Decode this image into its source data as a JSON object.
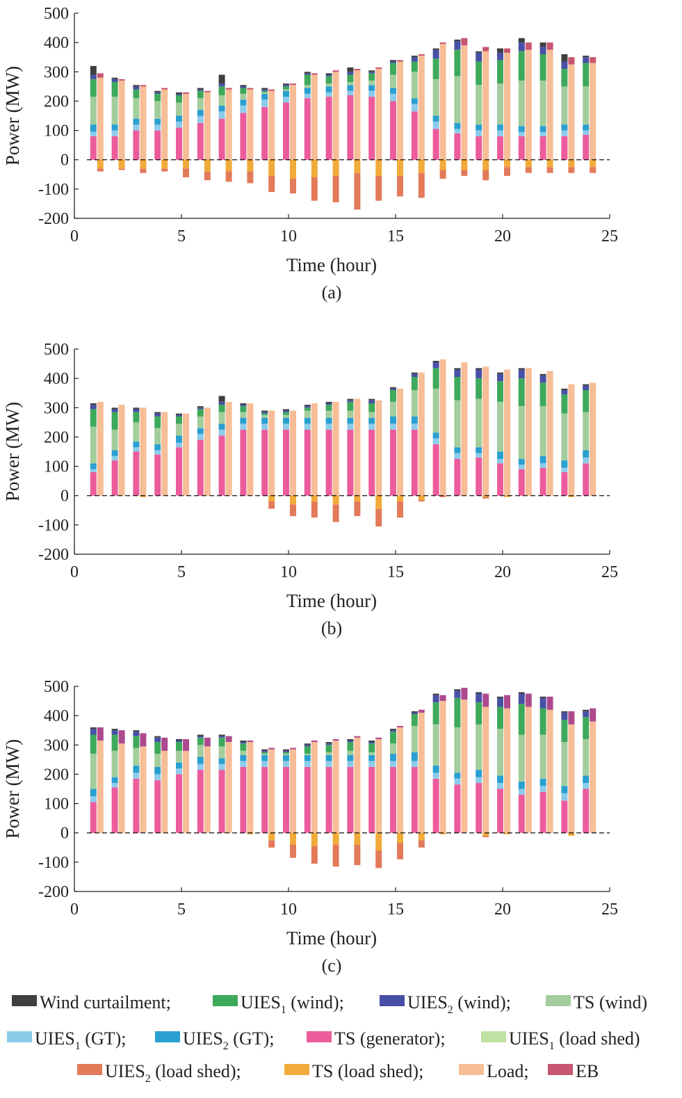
{
  "colors": {
    "wind_curt": "#3f3f3f",
    "u1_wind": "#3ea95a",
    "u2_wind": "#4850a6",
    "ts_wind": "#a3cd9c",
    "u1_gt": "#8ccbe9",
    "u2_gt": "#2a9fd0",
    "ts_gen": "#ec5c9c",
    "u1_shed": "#bfe1a2",
    "u2_shed": "#e37a5a",
    "ts_shed": "#f1ab3a",
    "load": "#f6bd96",
    "eb": "#c75670",
    "eb_c": "#ad4a8e"
  },
  "legend": [
    [
      {
        "key": "wind_curt",
        "label": "Wind curtailment;"
      },
      {
        "key": "u1_wind",
        "label": "UIES",
        "sub": "1",
        "after": " (wind);"
      },
      {
        "key": "u2_wind",
        "label": "UIES",
        "sub": "2",
        "after": " (wind);"
      },
      {
        "key": "ts_wind",
        "label": "TS (wind)"
      }
    ],
    [
      {
        "key": "u1_gt",
        "label": "UIES",
        "sub": "1",
        "after": " (GT);"
      },
      {
        "key": "u2_gt",
        "label": "UIES",
        "sub": "2",
        "after": " (GT);"
      },
      {
        "key": "ts_gen",
        "label": "TS (generator);"
      },
      {
        "key": "u1_shed",
        "label": "UIES",
        "sub": "1",
        "after": " (load shed)"
      }
    ],
    [
      {
        "key": "u2_shed",
        "label": "UIES",
        "sub": "2",
        "after": " (load shed);"
      },
      {
        "key": "ts_shed",
        "label": "TS (load shed);"
      },
      {
        "key": "load",
        "label": "Load;"
      },
      {
        "key": "eb",
        "label": "EB"
      }
    ]
  ],
  "chart_data": [
    {
      "type": "bar",
      "panel": "(a)",
      "xlabel": "Time (hour)",
      "ylabel": "Power (MW)",
      "xlim": [
        0,
        25
      ],
      "ylim": [
        -200,
        500
      ],
      "xticks": [
        0,
        5,
        10,
        15,
        20,
        25
      ],
      "yticks": [
        -200,
        -100,
        0,
        100,
        200,
        300,
        400,
        500
      ],
      "x": [
        1,
        2,
        3,
        4,
        5,
        6,
        7,
        8,
        9,
        10,
        11,
        12,
        13,
        14,
        15,
        16,
        17,
        18,
        19,
        20,
        21,
        22,
        23,
        24
      ],
      "series": [
        {
          "key": "ts_gen",
          "group": "supply",
          "values": [
            80,
            80,
            100,
            100,
            110,
            125,
            140,
            160,
            180,
            195,
            210,
            215,
            220,
            215,
            200,
            165,
            105,
            90,
            80,
            80,
            80,
            80,
            80,
            85
          ]
        },
        {
          "key": "u1_gt",
          "group": "supply",
          "values": [
            15,
            20,
            20,
            20,
            20,
            25,
            25,
            25,
            25,
            20,
            15,
            15,
            15,
            20,
            25,
            25,
            25,
            15,
            20,
            20,
            15,
            15,
            20,
            15
          ]
        },
        {
          "key": "u2_gt",
          "group": "supply",
          "values": [
            25,
            20,
            20,
            20,
            20,
            20,
            20,
            20,
            20,
            20,
            20,
            20,
            20,
            20,
            20,
            20,
            20,
            20,
            20,
            20,
            20,
            20,
            20,
            20
          ]
        },
        {
          "key": "ts_wind",
          "group": "supply",
          "values": [
            95,
            95,
            70,
            60,
            45,
            40,
            35,
            20,
            5,
            5,
            10,
            10,
            10,
            15,
            45,
            90,
            125,
            160,
            135,
            140,
            155,
            155,
            130,
            130
          ]
        },
        {
          "key": "u1_wind",
          "group": "supply",
          "values": [
            60,
            50,
            30,
            25,
            25,
            25,
            30,
            20,
            5,
            10,
            35,
            25,
            25,
            25,
            40,
            35,
            70,
            90,
            80,
            80,
            100,
            90,
            60,
            80
          ]
        },
        {
          "key": "u2_wind",
          "group": "supply",
          "values": [
            15,
            10,
            10,
            5,
            5,
            5,
            10,
            5,
            5,
            5,
            5,
            5,
            10,
            5,
            5,
            15,
            30,
            30,
            30,
            25,
            30,
            25,
            25,
            20
          ]
        },
        {
          "key": "wind_curt",
          "group": "supply",
          "values": [
            30,
            5,
            5,
            5,
            5,
            5,
            30,
            5,
            5,
            5,
            5,
            5,
            15,
            5,
            5,
            5,
            5,
            5,
            5,
            15,
            15,
            15,
            25,
            5
          ]
        },
        {
          "key": "load",
          "group": "demand",
          "values": [
            280,
            270,
            250,
            240,
            225,
            230,
            240,
            240,
            235,
            255,
            290,
            300,
            305,
            310,
            335,
            355,
            395,
            390,
            370,
            365,
            375,
            375,
            325,
            330
          ]
        },
        {
          "key": "eb",
          "group": "demand",
          "values": [
            15,
            5,
            5,
            5,
            5,
            5,
            5,
            5,
            5,
            5,
            5,
            5,
            5,
            5,
            5,
            5,
            5,
            25,
            15,
            15,
            25,
            25,
            25,
            20
          ]
        },
        {
          "key": "ts_shed",
          "group": "shed",
          "values": [
            30,
            30,
            30,
            30,
            30,
            40,
            40,
            40,
            55,
            65,
            60,
            55,
            45,
            55,
            55,
            45,
            35,
            35,
            35,
            25,
            25,
            25,
            25,
            25
          ]
        },
        {
          "key": "u2_shed",
          "group": "shed",
          "values": [
            10,
            5,
            15,
            10,
            30,
            30,
            35,
            40,
            55,
            50,
            80,
            90,
            125,
            85,
            70,
            85,
            30,
            20,
            35,
            30,
            20,
            20,
            20,
            20
          ]
        }
      ]
    },
    {
      "type": "bar",
      "panel": "(b)",
      "xlabel": "Time (hour)",
      "ylabel": "Power (MW)",
      "xlim": [
        0,
        25
      ],
      "ylim": [
        -200,
        500
      ],
      "xticks": [
        0,
        5,
        10,
        15,
        20,
        25
      ],
      "yticks": [
        -200,
        -100,
        0,
        100,
        200,
        300,
        400,
        500
      ],
      "x": [
        1,
        2,
        3,
        4,
        5,
        6,
        7,
        8,
        9,
        10,
        11,
        12,
        13,
        14,
        15,
        16,
        17,
        18,
        19,
        20,
        21,
        22,
        23,
        24
      ],
      "series": [
        {
          "key": "ts_gen",
          "group": "supply",
          "values": [
            80,
            120,
            150,
            140,
            165,
            190,
            205,
            225,
            225,
            225,
            225,
            225,
            225,
            225,
            225,
            225,
            175,
            125,
            130,
            110,
            90,
            95,
            80,
            110
          ]
        },
        {
          "key": "u1_gt",
          "group": "supply",
          "values": [
            10,
            15,
            15,
            15,
            15,
            20,
            20,
            20,
            20,
            20,
            20,
            20,
            20,
            20,
            20,
            20,
            20,
            20,
            15,
            15,
            15,
            15,
            15,
            20
          ]
        },
        {
          "key": "u2_gt",
          "group": "supply",
          "values": [
            20,
            20,
            20,
            20,
            25,
            20,
            20,
            20,
            20,
            20,
            20,
            20,
            20,
            20,
            25,
            25,
            20,
            20,
            20,
            25,
            20,
            25,
            25,
            25
          ]
        },
        {
          "key": "ts_wind",
          "group": "supply",
          "values": [
            125,
            70,
            65,
            55,
            40,
            40,
            40,
            20,
            10,
            10,
            25,
            25,
            25,
            20,
            50,
            90,
            150,
            160,
            165,
            170,
            180,
            170,
            160,
            130
          ]
        },
        {
          "key": "u1_wind",
          "group": "supply",
          "values": [
            60,
            60,
            35,
            40,
            25,
            25,
            25,
            20,
            5,
            10,
            10,
            20,
            30,
            30,
            40,
            45,
            70,
            80,
            70,
            70,
            95,
            80,
            65,
            75
          ]
        },
        {
          "key": "u2_wind",
          "group": "supply",
          "values": [
            15,
            10,
            10,
            10,
            5,
            5,
            10,
            5,
            5,
            5,
            5,
            5,
            5,
            10,
            5,
            10,
            20,
            25,
            30,
            25,
            30,
            25,
            15,
            15
          ]
        },
        {
          "key": "wind_curt",
          "group": "supply",
          "values": [
            5,
            5,
            5,
            5,
            5,
            5,
            20,
            5,
            5,
            5,
            5,
            5,
            5,
            5,
            5,
            5,
            5,
            5,
            5,
            5,
            5,
            5,
            5,
            5
          ]
        },
        {
          "key": "load",
          "group": "demand",
          "values": [
            320,
            310,
            300,
            285,
            280,
            300,
            320,
            315,
            290,
            290,
            315,
            320,
            330,
            325,
            365,
            420,
            465,
            455,
            440,
            430,
            435,
            425,
            380,
            385
          ]
        },
        {
          "key": "ts_shed",
          "group": "shed",
          "values": [
            0,
            0,
            5,
            0,
            0,
            0,
            0,
            0,
            20,
            30,
            20,
            30,
            20,
            45,
            20,
            15,
            0,
            0,
            5,
            5,
            0,
            0,
            5,
            0
          ]
        },
        {
          "key": "u2_shed",
          "group": "shed",
          "values": [
            0,
            0,
            0,
            0,
            0,
            0,
            0,
            0,
            25,
            40,
            55,
            60,
            50,
            60,
            55,
            5,
            5,
            0,
            5,
            0,
            0,
            0,
            0,
            0
          ]
        }
      ]
    },
    {
      "type": "bar",
      "panel": "(c)",
      "xlabel": "Time (hour)",
      "ylabel": "Power (MW)",
      "xlim": [
        0,
        25
      ],
      "ylim": [
        -200,
        500
      ],
      "xticks": [
        0,
        5,
        10,
        15,
        20,
        25
      ],
      "yticks": [
        -200,
        -100,
        0,
        100,
        200,
        300,
        400,
        500
      ],
      "x": [
        1,
        2,
        3,
        4,
        5,
        6,
        7,
        8,
        9,
        10,
        11,
        12,
        13,
        14,
        15,
        16,
        17,
        18,
        19,
        20,
        21,
        22,
        23,
        24
      ],
      "series": [
        {
          "key": "ts_gen",
          "group": "supply",
          "values": [
            105,
            155,
            185,
            180,
            200,
            215,
            215,
            225,
            225,
            225,
            225,
            225,
            225,
            225,
            225,
            225,
            185,
            165,
            170,
            150,
            130,
            140,
            110,
            150
          ]
        },
        {
          "key": "u1_gt",
          "group": "supply",
          "values": [
            20,
            15,
            20,
            20,
            20,
            20,
            20,
            20,
            20,
            20,
            20,
            20,
            20,
            20,
            20,
            20,
            20,
            20,
            20,
            20,
            20,
            20,
            25,
            20
          ]
        },
        {
          "key": "u2_gt",
          "group": "supply",
          "values": [
            25,
            20,
            25,
            25,
            20,
            25,
            20,
            20,
            20,
            20,
            20,
            20,
            20,
            20,
            25,
            30,
            25,
            20,
            25,
            25,
            25,
            25,
            25,
            25
          ]
        },
        {
          "key": "ts_wind",
          "group": "supply",
          "values": [
            120,
            90,
            60,
            45,
            40,
            40,
            40,
            15,
            5,
            5,
            5,
            10,
            15,
            10,
            35,
            90,
            140,
            155,
            155,
            160,
            160,
            150,
            150,
            125
          ]
        },
        {
          "key": "u1_wind",
          "group": "supply",
          "values": [
            65,
            55,
            40,
            40,
            30,
            25,
            30,
            25,
            5,
            5,
            25,
            25,
            30,
            30,
            40,
            40,
            75,
            100,
            75,
            75,
            105,
            90,
            75,
            75
          ]
        },
        {
          "key": "u2_wind",
          "group": "supply",
          "values": [
            20,
            15,
            15,
            15,
            5,
            5,
            5,
            5,
            5,
            5,
            5,
            5,
            5,
            5,
            5,
            5,
            25,
            25,
            30,
            30,
            35,
            35,
            25,
            20
          ]
        },
        {
          "key": "wind_curt",
          "group": "supply",
          "values": [
            5,
            5,
            5,
            5,
            5,
            5,
            5,
            5,
            5,
            5,
            5,
            5,
            5,
            5,
            5,
            5,
            5,
            5,
            5,
            5,
            5,
            5,
            5,
            5
          ]
        },
        {
          "key": "load",
          "group": "demand",
          "values": [
            315,
            305,
            295,
            280,
            280,
            295,
            310,
            310,
            285,
            285,
            310,
            315,
            325,
            320,
            360,
            410,
            450,
            455,
            430,
            425,
            430,
            420,
            370,
            380
          ]
        },
        {
          "key": "eb_c",
          "group": "demand",
          "values": [
            45,
            45,
            45,
            45,
            40,
            30,
            20,
            5,
            5,
            5,
            5,
            5,
            5,
            5,
            5,
            10,
            20,
            40,
            45,
            45,
            45,
            45,
            45,
            45
          ]
        },
        {
          "key": "ts_shed",
          "group": "shed",
          "values": [
            0,
            0,
            0,
            0,
            0,
            0,
            0,
            5,
            25,
            40,
            45,
            40,
            40,
            60,
            35,
            25,
            5,
            0,
            10,
            5,
            0,
            0,
            10,
            0
          ]
        },
        {
          "key": "u2_shed",
          "group": "shed",
          "values": [
            0,
            0,
            0,
            0,
            0,
            0,
            0,
            0,
            25,
            45,
            60,
            75,
            70,
            60,
            55,
            25,
            0,
            0,
            5,
            0,
            0,
            0,
            0,
            0
          ]
        }
      ]
    }
  ]
}
